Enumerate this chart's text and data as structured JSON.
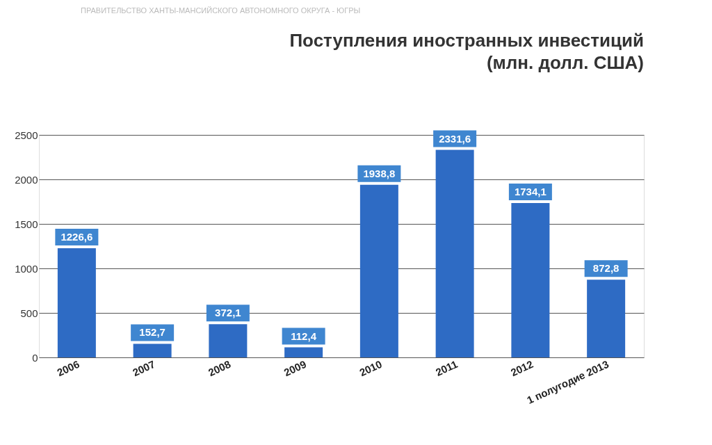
{
  "chart_data": {
    "type": "bar",
    "title": "Поступления иностранных инвестиций (млн. долл. США)",
    "categories": [
      "2006",
      "2007",
      "2008",
      "2009",
      "2010",
      "2011",
      "2012",
      "1 полугодие 2013"
    ],
    "values": [
      1226.6,
      152.7,
      372.1,
      112.4,
      1938.8,
      2331.6,
      1734.1,
      872.8
    ],
    "value_labels": [
      "1226,6",
      "152,7",
      "372,1",
      "112,4",
      "1938,8",
      "2331,6",
      "1734,1",
      "872,8"
    ],
    "color": "#2e6bc4",
    "ylim": [
      0,
      2500
    ],
    "yticks": [
      0,
      500,
      1000,
      1500,
      2000,
      2500
    ],
    "grid": "y",
    "annotations": [
      "ПРАВИТЕЛЬСТВО ХАНТЫ-МАНСИЙСКОГО АВТОНОМНОГО ОКРУГА - ЮГРЫ"
    ]
  }
}
